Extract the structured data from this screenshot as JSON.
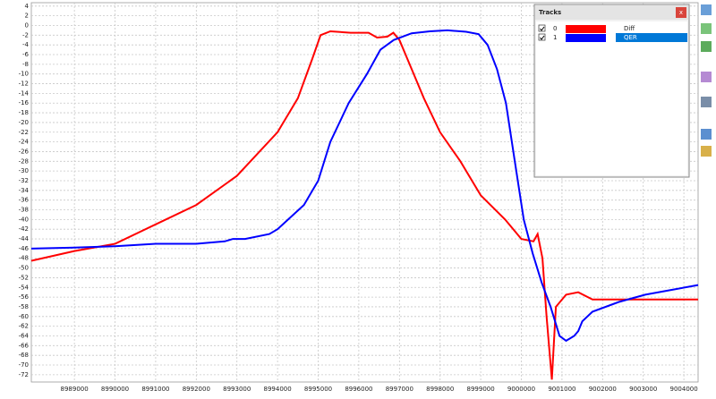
{
  "chart_data": {
    "type": "line",
    "xlim": [
      8987940,
      9004350
    ],
    "ylim": [
      -73.5,
      4.7
    ],
    "xticks": [
      8989000,
      8990000,
      8991000,
      8992000,
      8993000,
      8994000,
      8995000,
      8996000,
      8997000,
      8998000,
      8999000,
      9000000,
      9001000,
      9002000,
      9003000,
      9004000
    ],
    "yticks": [
      4,
      2,
      0,
      -2,
      -4,
      -6,
      -8,
      -10,
      -12,
      -14,
      -16,
      -18,
      -20,
      -22,
      -24,
      -26,
      -28,
      -30,
      -32,
      -34,
      -36,
      -38,
      -40,
      -42,
      -44,
      -46,
      -48,
      -50,
      -52,
      -54,
      -56,
      -58,
      -60,
      -62,
      -64,
      -66,
      -68,
      -70,
      -72
    ],
    "grid": true,
    "series": [
      {
        "name": "Diff",
        "color": "#ff0000",
        "x": [
          8987940,
          8989000,
          8990000,
          8991000,
          8992000,
          8993000,
          8994000,
          8994500,
          8994850,
          8995060,
          8995300,
          8995800,
          8996240,
          8996450,
          8996700,
          8996850,
          8997000,
          8997250,
          8997600,
          8998000,
          8998500,
          8999000,
          8999600,
          9000000,
          9000300,
          9000400,
          9000520,
          9000620,
          9000750,
          9000850,
          9001100,
          9001400,
          9001750,
          9002400,
          9004350
        ],
        "values": [
          -48.5,
          -46.5,
          -45,
          -41,
          -37,
          -31,
          -22,
          -15,
          -7,
          -2,
          -1.2,
          -1.5,
          -1.5,
          -2.5,
          -2.3,
          -1.5,
          -3,
          -8,
          -15,
          -22,
          -28,
          -35,
          -40,
          -44,
          -44.5,
          -43,
          -48,
          -60,
          -73,
          -58,
          -55.5,
          -55,
          -56.5,
          -56.5,
          -56.5
        ]
      },
      {
        "name": "QER",
        "color": "#0000ff",
        "x": [
          8987940,
          8989000,
          8990000,
          8991000,
          8992000,
          8992700,
          8992900,
          8993200,
          8993800,
          8994000,
          8994650,
          8995000,
          8995300,
          8995750,
          8996200,
          8996530,
          8996860,
          8997300,
          8997750,
          8998180,
          8998640,
          8998950,
          8999170,
          8999400,
          8999620,
          8999840,
          9000060,
          9000280,
          9000500,
          9000720,
          9000940,
          9001100,
          9001300,
          9001400,
          9001500,
          9001750,
          9002400,
          9003050,
          9003700,
          9004350
        ],
        "values": [
          -46,
          -45.8,
          -45.5,
          -45,
          -45,
          -44.5,
          -44,
          -44,
          -43,
          -42,
          -37,
          -32,
          -24,
          -16,
          -10,
          -5,
          -3,
          -1.6,
          -1.2,
          -1,
          -1.3,
          -1.8,
          -4,
          -9,
          -16,
          -28,
          -40,
          -47,
          -53,
          -58,
          -64,
          -65,
          -64,
          -63,
          -61,
          -59,
          -57,
          -55.5,
          -54.5,
          -53.5
        ]
      }
    ]
  },
  "panel": {
    "title": "Tracks",
    "close": "x",
    "track_ids": [
      "0",
      "1"
    ]
  }
}
